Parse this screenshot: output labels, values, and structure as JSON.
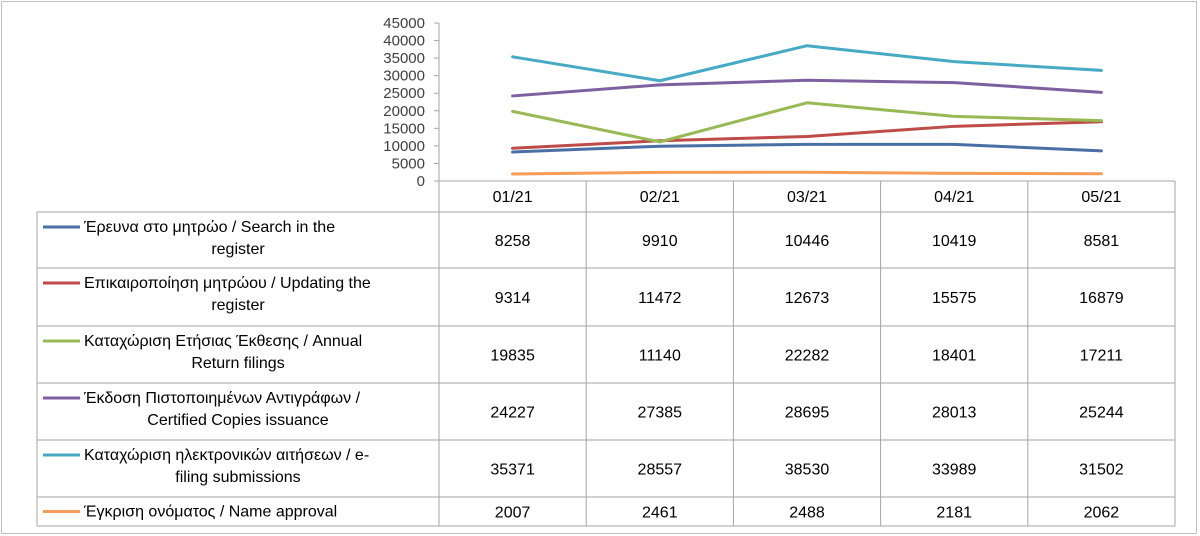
{
  "chart_data": {
    "type": "line",
    "categories": [
      "01/21",
      "02/21",
      "03/21",
      "04/21",
      "05/21"
    ],
    "ylim": [
      0,
      45000
    ],
    "y_ticks": [
      "0",
      "5000",
      "10000",
      "15000",
      "20000",
      "25000",
      "30000",
      "35000",
      "40000",
      "45000"
    ],
    "grid": false,
    "legend": "data-table",
    "series": [
      {
        "name_lines": [
          "Έρευνα στο μητρώο / Search in the",
          "register"
        ],
        "color": "#4a6fa5",
        "values": [
          8258,
          9910,
          10446,
          10419,
          8581
        ]
      },
      {
        "name_lines": [
          "Επικαιροποίηση μητρώου / Updating the",
          "register"
        ],
        "color": "#be4b48",
        "values": [
          9314,
          11472,
          12673,
          15575,
          16879
        ]
      },
      {
        "name_lines": [
          "Καταχώριση Ετήσιας Έκθεσης / Annual",
          "Return filings"
        ],
        "color": "#98b954",
        "values": [
          19835,
          11140,
          22282,
          18401,
          17211
        ]
      },
      {
        "name_lines": [
          "Έκδοση Πιστοποιημένων Αντιγράφων /",
          "Certified Copies issuance"
        ],
        "color": "#7d60a0",
        "values": [
          24227,
          27385,
          28695,
          28013,
          25244
        ]
      },
      {
        "name_lines": [
          "Καταχώριση ηλεκτρονικών αιτήσεων / e-",
          "filing submissions"
        ],
        "color": "#46aac5",
        "values": [
          35371,
          28557,
          38530,
          33989,
          31502
        ]
      },
      {
        "name_lines": [
          "Έγκριση ονόματος / Name approval"
        ],
        "color": "#f59d56",
        "values": [
          2007,
          2461,
          2488,
          2181,
          2062
        ]
      }
    ]
  }
}
